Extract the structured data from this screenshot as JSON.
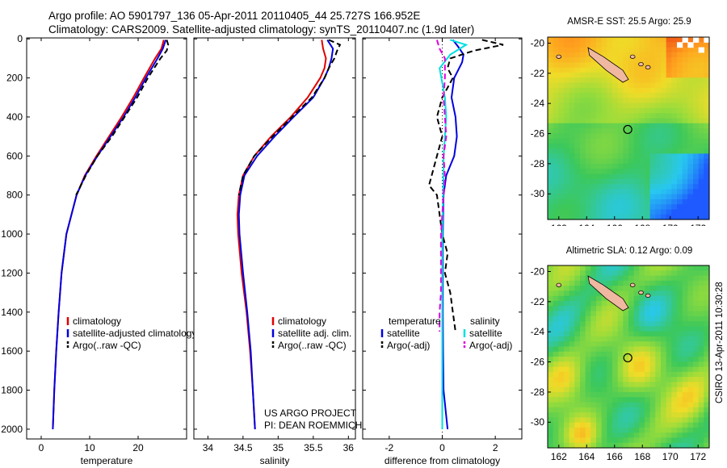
{
  "header": {
    "line1": "Argo profile: AO 5901797_136 05-Apr-2011 20110405_44 25.727S 166.952E",
    "line2": "Climatology: CARS2009. Satellite-adjusted climatology: synTS_20110407.nc (1.9d later)"
  },
  "maps": {
    "sst_title": "AMSR-E SST: 25.5 Argo: 25.9",
    "sla_title": "Altimetric SLA: 0.12 Argo: 0.09",
    "yticks": [
      "-20",
      "-22",
      "-24",
      "-26",
      "-28",
      "-30"
    ],
    "xticks": [
      "162",
      "164",
      "166",
      "168",
      "170",
      "172"
    ]
  },
  "stamp": "CSIRO 13-Apr-2011 10:30:28",
  "colors": {
    "climatology": "#e00000",
    "satellite": "#0000e0",
    "argo": "#000000",
    "salinity_sat": "#00e0e0",
    "salinity_argo": "#e000e0"
  },
  "chart_data": [
    {
      "type": "line",
      "xlabel": "temperature",
      "ylabel": "",
      "xlim": [
        -3,
        30
      ],
      "ylim": [
        2050,
        -5
      ],
      "xticks": [
        "0",
        "10",
        "20"
      ],
      "yticks": [
        "0",
        "200",
        "400",
        "600",
        "800",
        "1000",
        "1200",
        "1400",
        "1600",
        "1800",
        "2000"
      ],
      "legend": [
        "climatology",
        "satellite-adjusted climatology",
        "Argo(..raw -QC)"
      ],
      "series": [
        {
          "name": "climatology",
          "style": "solid",
          "color": "#e00000",
          "depth": [
            5,
            50,
            100,
            200,
            300,
            400,
            500,
            600,
            700,
            800,
            1000,
            1200,
            1400,
            1600,
            1800,
            2000
          ],
          "values": [
            25.3,
            24.8,
            23.5,
            21.2,
            19.0,
            16.6,
            14.0,
            11.4,
            9.0,
            7.3,
            5.2,
            4.2,
            3.6,
            3.1,
            2.7,
            2.4
          ]
        },
        {
          "name": "satellite-adjusted climatology",
          "style": "solid",
          "color": "#0000e0",
          "depth": [
            5,
            50,
            100,
            200,
            300,
            400,
            500,
            600,
            700,
            800,
            1000,
            1200,
            1400,
            1600,
            1800,
            2000
          ],
          "values": [
            25.7,
            25.1,
            24.0,
            21.6,
            19.4,
            17.0,
            14.3,
            11.6,
            9.1,
            7.3,
            5.2,
            4.2,
            3.6,
            3.1,
            2.7,
            2.4
          ]
        },
        {
          "name": "Argo(..raw -QC)",
          "style": "dashed",
          "color": "#000000",
          "depth": [
            5,
            30,
            60,
            100,
            200,
            300,
            400,
            500,
            600,
            700,
            800
          ],
          "values": [
            25.9,
            26.2,
            25.9,
            24.6,
            22.0,
            19.8,
            17.2,
            14.6,
            11.6,
            9.2,
            7.2
          ]
        }
      ]
    },
    {
      "type": "line",
      "xlabel": "salinity",
      "ylabel": "",
      "xlim": [
        33.8,
        36.1
      ],
      "ylim": [
        2050,
        -5
      ],
      "xticks": [
        "34",
        "34.5",
        "35",
        "35.5",
        "36"
      ],
      "legend": [
        "climatology",
        "satellite adj. clim.",
        "Argo(..raw -QC)"
      ],
      "annotations": [
        "US ARGO PROJECT",
        "PI: DEAN ROEMMICH"
      ],
      "series": [
        {
          "name": "climatology",
          "style": "solid",
          "color": "#e00000",
          "depth": [
            5,
            50,
            100,
            150,
            200,
            300,
            400,
            500,
            600,
            700,
            800,
            900,
            1000,
            1200,
            1400,
            1600,
            1800,
            2000
          ],
          "values": [
            35.62,
            35.64,
            35.68,
            35.66,
            35.6,
            35.42,
            35.18,
            34.9,
            34.66,
            34.5,
            34.44,
            34.42,
            34.43,
            34.48,
            34.55,
            34.6,
            34.64,
            34.67
          ]
        },
        {
          "name": "satellite adj. clim.",
          "style": "solid",
          "color": "#0000e0",
          "depth": [
            5,
            50,
            100,
            150,
            200,
            300,
            400,
            500,
            600,
            700,
            800,
            900,
            1000,
            1200,
            1400,
            1600,
            1800,
            2000
          ],
          "values": [
            35.7,
            35.78,
            35.76,
            35.72,
            35.66,
            35.5,
            35.22,
            34.95,
            34.7,
            34.52,
            34.46,
            34.44,
            34.45,
            34.5,
            34.56,
            34.61,
            34.64,
            34.67
          ]
        },
        {
          "name": "Argo(..raw -QC)",
          "style": "dashed",
          "color": "#000000",
          "depth": [
            5,
            30,
            60,
            100,
            150,
            200,
            300,
            400,
            500,
            600,
            700,
            800
          ],
          "values": [
            35.72,
            35.88,
            35.84,
            35.8,
            35.72,
            35.66,
            35.48,
            35.2,
            34.92,
            34.66,
            34.5,
            34.44
          ]
        }
      ]
    },
    {
      "type": "line",
      "xlabel": "difference from climatology",
      "ylabel": "",
      "xlim": [
        -3,
        3
      ],
      "ylim": [
        2050,
        -5
      ],
      "xticks": [
        "-2",
        "0",
        "2"
      ],
      "legend": [
        "temperature",
        "satellite",
        "Argo(-adj)",
        "salinity",
        "satellite",
        "Argo(-adj)"
      ],
      "series": [
        {
          "name": "satellite",
          "style": "solid",
          "color": "#0000e0",
          "depth": [
            5,
            40,
            80,
            120,
            200,
            300,
            400,
            500,
            600,
            700,
            800,
            1000,
            1200,
            1400,
            1600,
            1800,
            2000
          ],
          "values": [
            0.4,
            0.6,
            0.8,
            0.75,
            0.45,
            0.35,
            0.5,
            0.55,
            0.45,
            0.15,
            0.05,
            0.02,
            0.02,
            0.02,
            0.03,
            0.05,
            0.2
          ]
        },
        {
          "name": "Argo(-adj)",
          "style": "dashed",
          "color": "#000000",
          "depth": [
            5,
            30,
            60,
            100,
            150,
            200,
            300,
            400,
            500,
            600,
            700,
            750,
            800,
            900,
            1000,
            1100,
            1200,
            1300,
            1400,
            1500
          ],
          "values": [
            1.5,
            2.3,
            1.2,
            0.3,
            0.2,
            0.4,
            0.0,
            -0.2,
            0.0,
            -0.2,
            -0.4,
            -0.5,
            -0.2,
            -0.1,
            0.0,
            0.2,
            0.1,
            0.3,
            0.4,
            0.5
          ]
        },
        {
          "name": "satellite",
          "style": "solid",
          "color": "#00e0e0",
          "depth": [
            5,
            30,
            80,
            150,
            300,
            400,
            500,
            600,
            700,
            800,
            1000,
            1200,
            1400,
            1600,
            1800,
            2000
          ],
          "values": [
            0.3,
            0.9,
            0.3,
            -0.1,
            0.1,
            0.15,
            0.1,
            0.05,
            0.05,
            0.03,
            0.0,
            0.0,
            0.0,
            0.0,
            0.0,
            0.0
          ]
        },
        {
          "name": "Argo(-adj)",
          "style": "dashed",
          "color": "#e000e0",
          "depth": [
            5,
            50,
            100,
            200,
            300,
            400,
            500,
            600,
            700,
            800,
            900,
            1000,
            1100,
            1200,
            1300,
            1400,
            1500
          ],
          "values": [
            -0.2,
            -0.1,
            0.1,
            0.1,
            0.05,
            0.1,
            0.15,
            0.05,
            0.1,
            0.05,
            0.0,
            -0.05,
            -0.05,
            -0.05,
            -0.05,
            -0.1,
            -0.1
          ]
        }
      ]
    }
  ]
}
